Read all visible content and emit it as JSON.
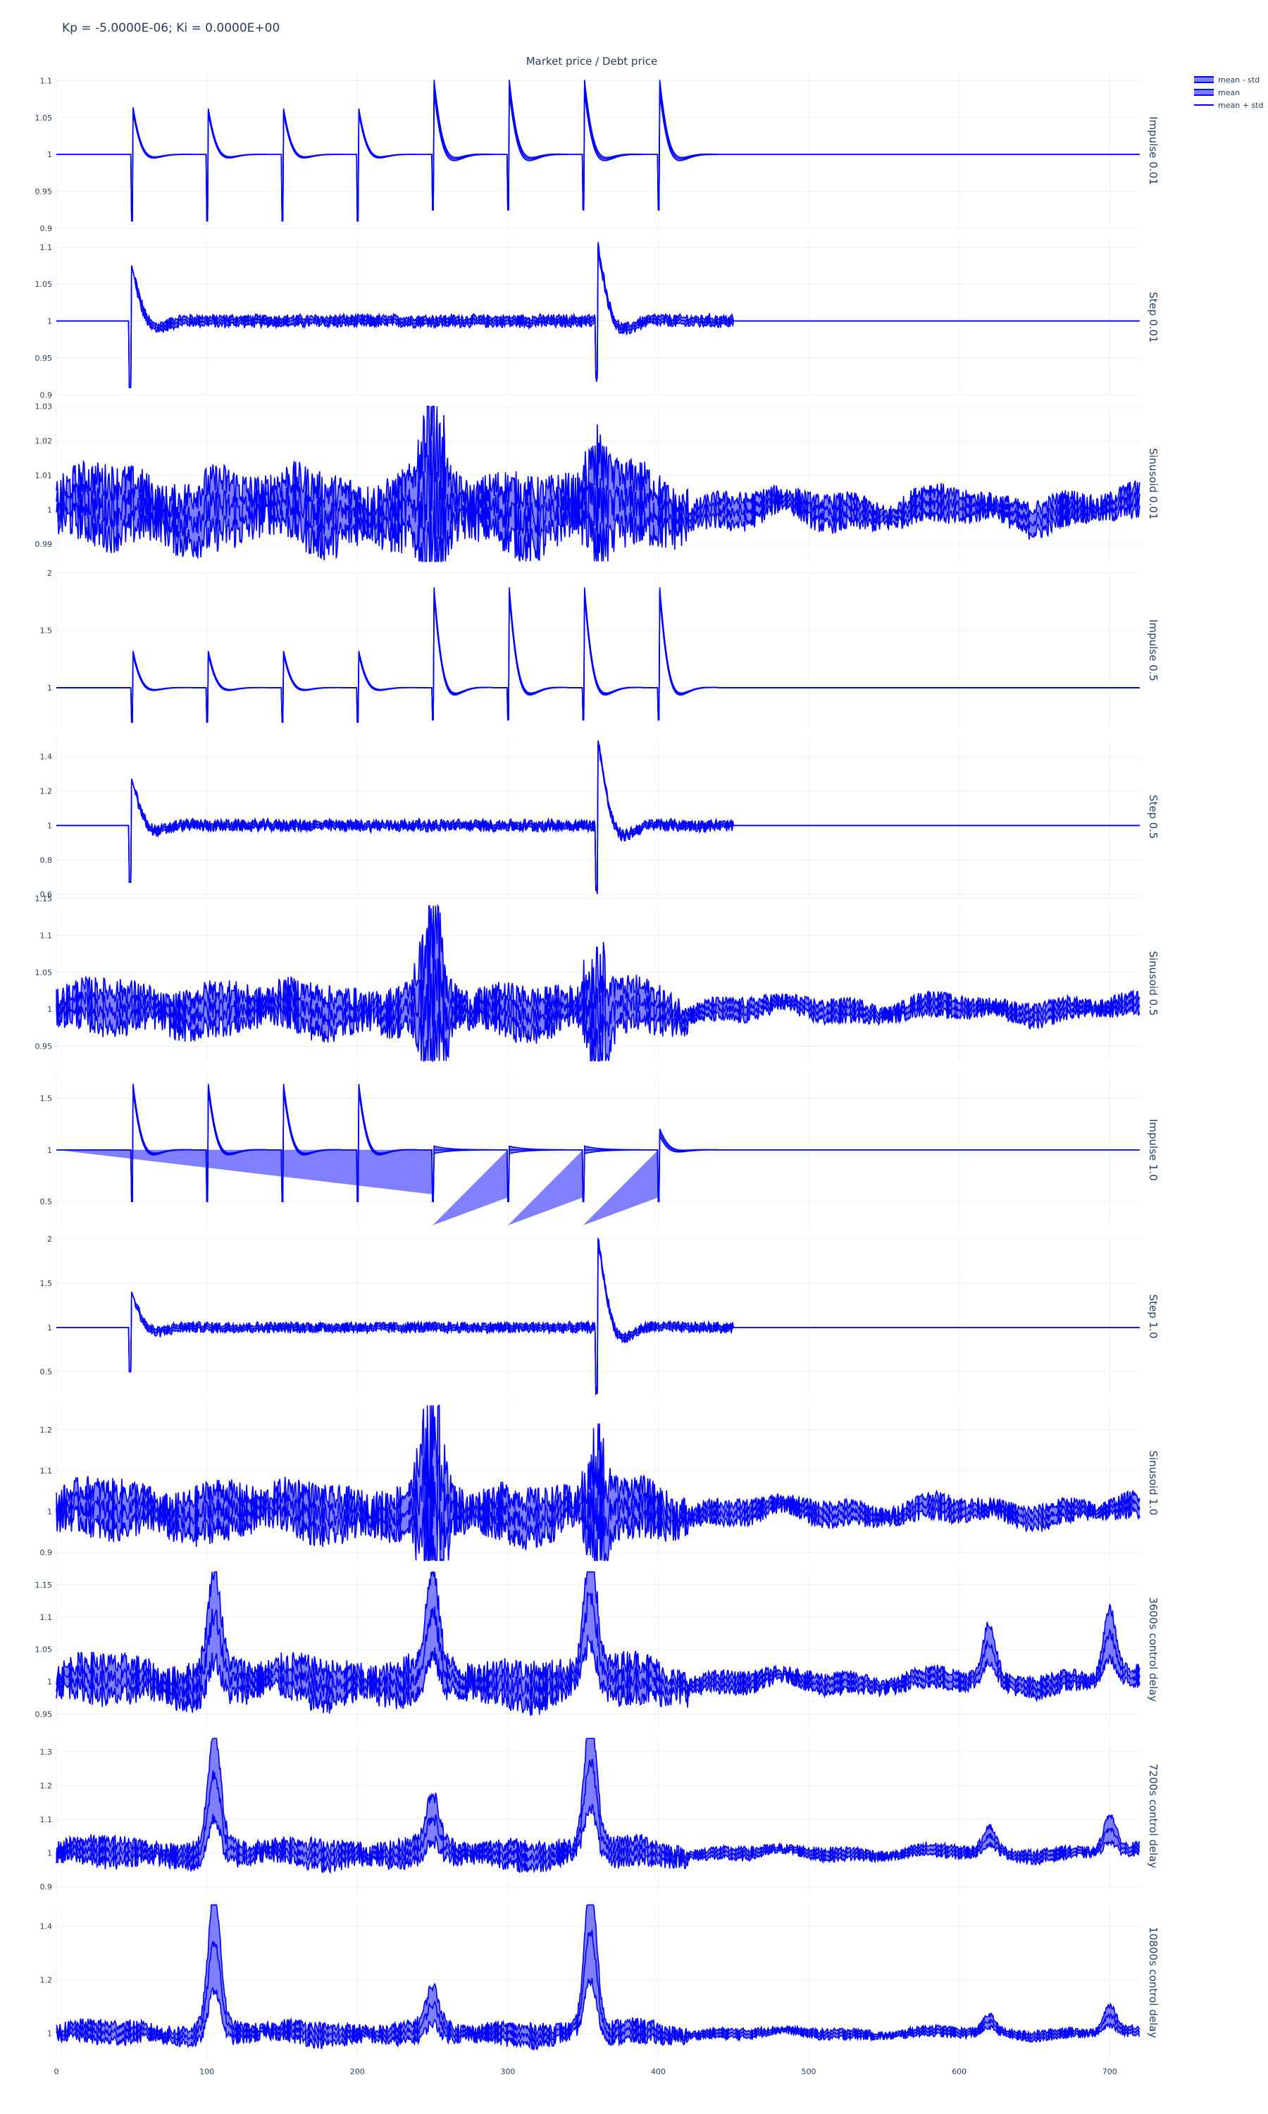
{
  "figure": {
    "title": "Kp = -5.0000E-06; Ki = 0.0000E+00",
    "subplot_title": "Market price / Debt price"
  },
  "legend": [
    {
      "label": "mean - std",
      "style": "fill"
    },
    {
      "label": "mean",
      "style": "fill"
    },
    {
      "label": "mean + std",
      "style": "line"
    }
  ],
  "colors": {
    "line": "#0000ff",
    "band": "#7f7fff",
    "grid": "#ebf0f8",
    "text": "#2a3f5f"
  },
  "chart_data": {
    "type": "line",
    "x_axis": {
      "range": [
        0,
        720
      ],
      "ticks": [
        0,
        100,
        200,
        300,
        400,
        500,
        600,
        700
      ]
    },
    "grid": true,
    "legend_position": "top-right",
    "panels": [
      {
        "label": "Impulse 0.01",
        "ylim": [
          0.9,
          1.11
        ],
        "yticks": [
          0.9,
          0.95,
          1,
          1.05,
          1.1
        ],
        "kind": "impulse",
        "events": [
          {
            "x": 50,
            "up": 1.072,
            "down": 0.91,
            "spread": 0.004
          },
          {
            "x": 100,
            "up": 1.07,
            "down": 0.91,
            "spread": 0.004
          },
          {
            "x": 150,
            "up": 1.07,
            "down": 0.91,
            "spread": 0.004
          },
          {
            "x": 200,
            "up": 1.07,
            "down": 0.91,
            "spread": 0.004
          },
          {
            "x": 250,
            "up": 1.11,
            "down": 0.925,
            "spread": 0.01
          },
          {
            "x": 300,
            "up": 1.11,
            "down": 0.925,
            "spread": 0.01
          },
          {
            "x": 350,
            "up": 1.11,
            "down": 0.925,
            "spread": 0.01
          },
          {
            "x": 400,
            "up": 1.11,
            "down": 0.925,
            "spread": 0.01
          }
        ]
      },
      {
        "label": "Step 0.01",
        "ylim": [
          0.9,
          1.11
        ],
        "yticks": [
          0.9,
          0.95,
          1,
          1.05,
          1.1
        ],
        "kind": "step",
        "events": [
          {
            "x": 50,
            "up": 1.075,
            "down": 0.91
          },
          {
            "x": 360,
            "up": 1.1,
            "down": 0.925
          }
        ],
        "noise_amp": 0.004,
        "noise_band": 0.006,
        "noise_end": 450
      },
      {
        "label": "Sinusoid 0.01",
        "ylim": [
          0.985,
          1.03
        ],
        "yticks": [
          0.99,
          1,
          1.01,
          1.02,
          1.03
        ],
        "kind": "sinusoid",
        "amp": 0.009,
        "spikes": [
          {
            "x": 250,
            "up": 1.03,
            "down": 0.985
          },
          {
            "x": 360,
            "up": 1.015,
            "down": 0.99
          }
        ]
      },
      {
        "label": "Impulse 0.5",
        "ylim": [
          0.65,
          2
        ],
        "yticks": [
          1,
          1.5,
          2
        ],
        "kind": "impulse",
        "events": [
          {
            "x": 50,
            "up": 1.36,
            "down": 0.7,
            "spread": 0.02
          },
          {
            "x": 100,
            "up": 1.36,
            "down": 0.7,
            "spread": 0.02
          },
          {
            "x": 150,
            "up": 1.36,
            "down": 0.7,
            "spread": 0.02
          },
          {
            "x": 200,
            "up": 1.36,
            "down": 0.7,
            "spread": 0.02
          },
          {
            "x": 250,
            "up": 2,
            "down": 0.72,
            "spread": 0.04
          },
          {
            "x": 300,
            "up": 2,
            "down": 0.72,
            "spread": 0.04
          },
          {
            "x": 350,
            "up": 2,
            "down": 0.72,
            "spread": 0.04
          },
          {
            "x": 400,
            "up": 2,
            "down": 0.72,
            "spread": 0.04
          }
        ]
      },
      {
        "label": "Step 0.5",
        "ylim": [
          0.6,
          1.5
        ],
        "yticks": [
          0.6,
          0.8,
          1,
          1.2,
          1.4
        ],
        "kind": "step",
        "events": [
          {
            "x": 50,
            "up": 1.27,
            "down": 0.67
          },
          {
            "x": 360,
            "up": 1.5,
            "down": 0.62
          }
        ],
        "noise_amp": 0.02,
        "noise_band": 0.02,
        "noise_end": 450
      },
      {
        "label": "Sinusoid 0.5",
        "ylim": [
          0.93,
          1.14
        ],
        "yticks": [
          0.95,
          1,
          1.05,
          1.1,
          1.15
        ],
        "kind": "sinusoid",
        "amp": 0.028,
        "spikes": [
          {
            "x": 250,
            "up": 1.14,
            "down": 0.93
          },
          {
            "x": 360,
            "up": 1.08,
            "down": 0.94
          }
        ]
      },
      {
        "label": "Impulse 1.0",
        "ylim": [
          0.25,
          1.75
        ],
        "yticks": [
          0.5,
          1,
          1.5
        ],
        "kind": "impulse_wedge",
        "events": [
          {
            "x": 50,
            "up": 1.72,
            "down": 0.5,
            "spread": 0.04
          },
          {
            "x": 100,
            "up": 1.72,
            "down": 0.5,
            "spread": 0.04
          },
          {
            "x": 150,
            "up": 1.72,
            "down": 0.5,
            "spread": 0.04
          },
          {
            "x": 200,
            "up": 1.72,
            "down": 0.5,
            "spread": 0.04
          },
          {
            "x": 250,
            "up": 1.0,
            "down": 0.5,
            "spread": 0.04
          },
          {
            "x": 300,
            "up": 1.0,
            "down": 0.5,
            "spread": 0.04
          },
          {
            "x": 350,
            "up": 1.0,
            "down": 0.5,
            "spread": 0.04
          },
          {
            "x": 400,
            "up": 1.2,
            "down": 0.5,
            "spread": 0.04
          }
        ],
        "wedge_low": 0.27
      },
      {
        "label": "Step 1.0",
        "ylim": [
          0.25,
          2
        ],
        "yticks": [
          0.5,
          1,
          1.5,
          2
        ],
        "kind": "step",
        "events": [
          {
            "x": 50,
            "up": 1.4,
            "down": 0.5
          },
          {
            "x": 360,
            "up": 2,
            "down": 0.27
          }
        ],
        "noise_amp": 0.03,
        "noise_band": 0.04,
        "noise_end": 450
      },
      {
        "label": "Sinusoid 1.0",
        "ylim": [
          0.88,
          1.26
        ],
        "yticks": [
          0.9,
          1,
          1.1,
          1.2
        ],
        "kind": "sinusoid",
        "amp": 0.055,
        "spikes": [
          {
            "x": 250,
            "up": 1.26,
            "down": 0.88
          },
          {
            "x": 360,
            "up": 1.15,
            "down": 0.9
          }
        ]
      },
      {
        "label": "3600s control delay",
        "ylim": [
          0.93,
          1.17
        ],
        "yticks": [
          0.95,
          1,
          1.05,
          1.1,
          1.15
        ],
        "kind": "delay",
        "amp": 0.03,
        "peaks": [
          {
            "x": 105,
            "v": 1.13
          },
          {
            "x": 250,
            "v": 1.12
          },
          {
            "x": 355,
            "v": 1.165
          },
          {
            "x": 620,
            "v": 1.07
          },
          {
            "x": 700,
            "v": 1.09
          }
        ]
      },
      {
        "label": "7200s control delay",
        "ylim": [
          0.88,
          1.34
        ],
        "yticks": [
          0.9,
          1,
          1.1,
          1.2,
          1.3
        ],
        "kind": "delay",
        "amp": 0.035,
        "peaks": [
          {
            "x": 105,
            "v": 1.29
          },
          {
            "x": 250,
            "v": 1.12
          },
          {
            "x": 355,
            "v": 1.34
          },
          {
            "x": 620,
            "v": 1.06
          },
          {
            "x": 700,
            "v": 1.09
          }
        ]
      },
      {
        "label": "10800s control delay",
        "ylim": [
          0.9,
          1.48
        ],
        "yticks": [
          1,
          1.2,
          1.4
        ],
        "kind": "delay",
        "amp": 0.035,
        "peaks": [
          {
            "x": 105,
            "v": 1.43
          },
          {
            "x": 250,
            "v": 1.12
          },
          {
            "x": 355,
            "v": 1.47
          },
          {
            "x": 620,
            "v": 1.05
          },
          {
            "x": 700,
            "v": 1.08
          }
        ]
      }
    ]
  }
}
